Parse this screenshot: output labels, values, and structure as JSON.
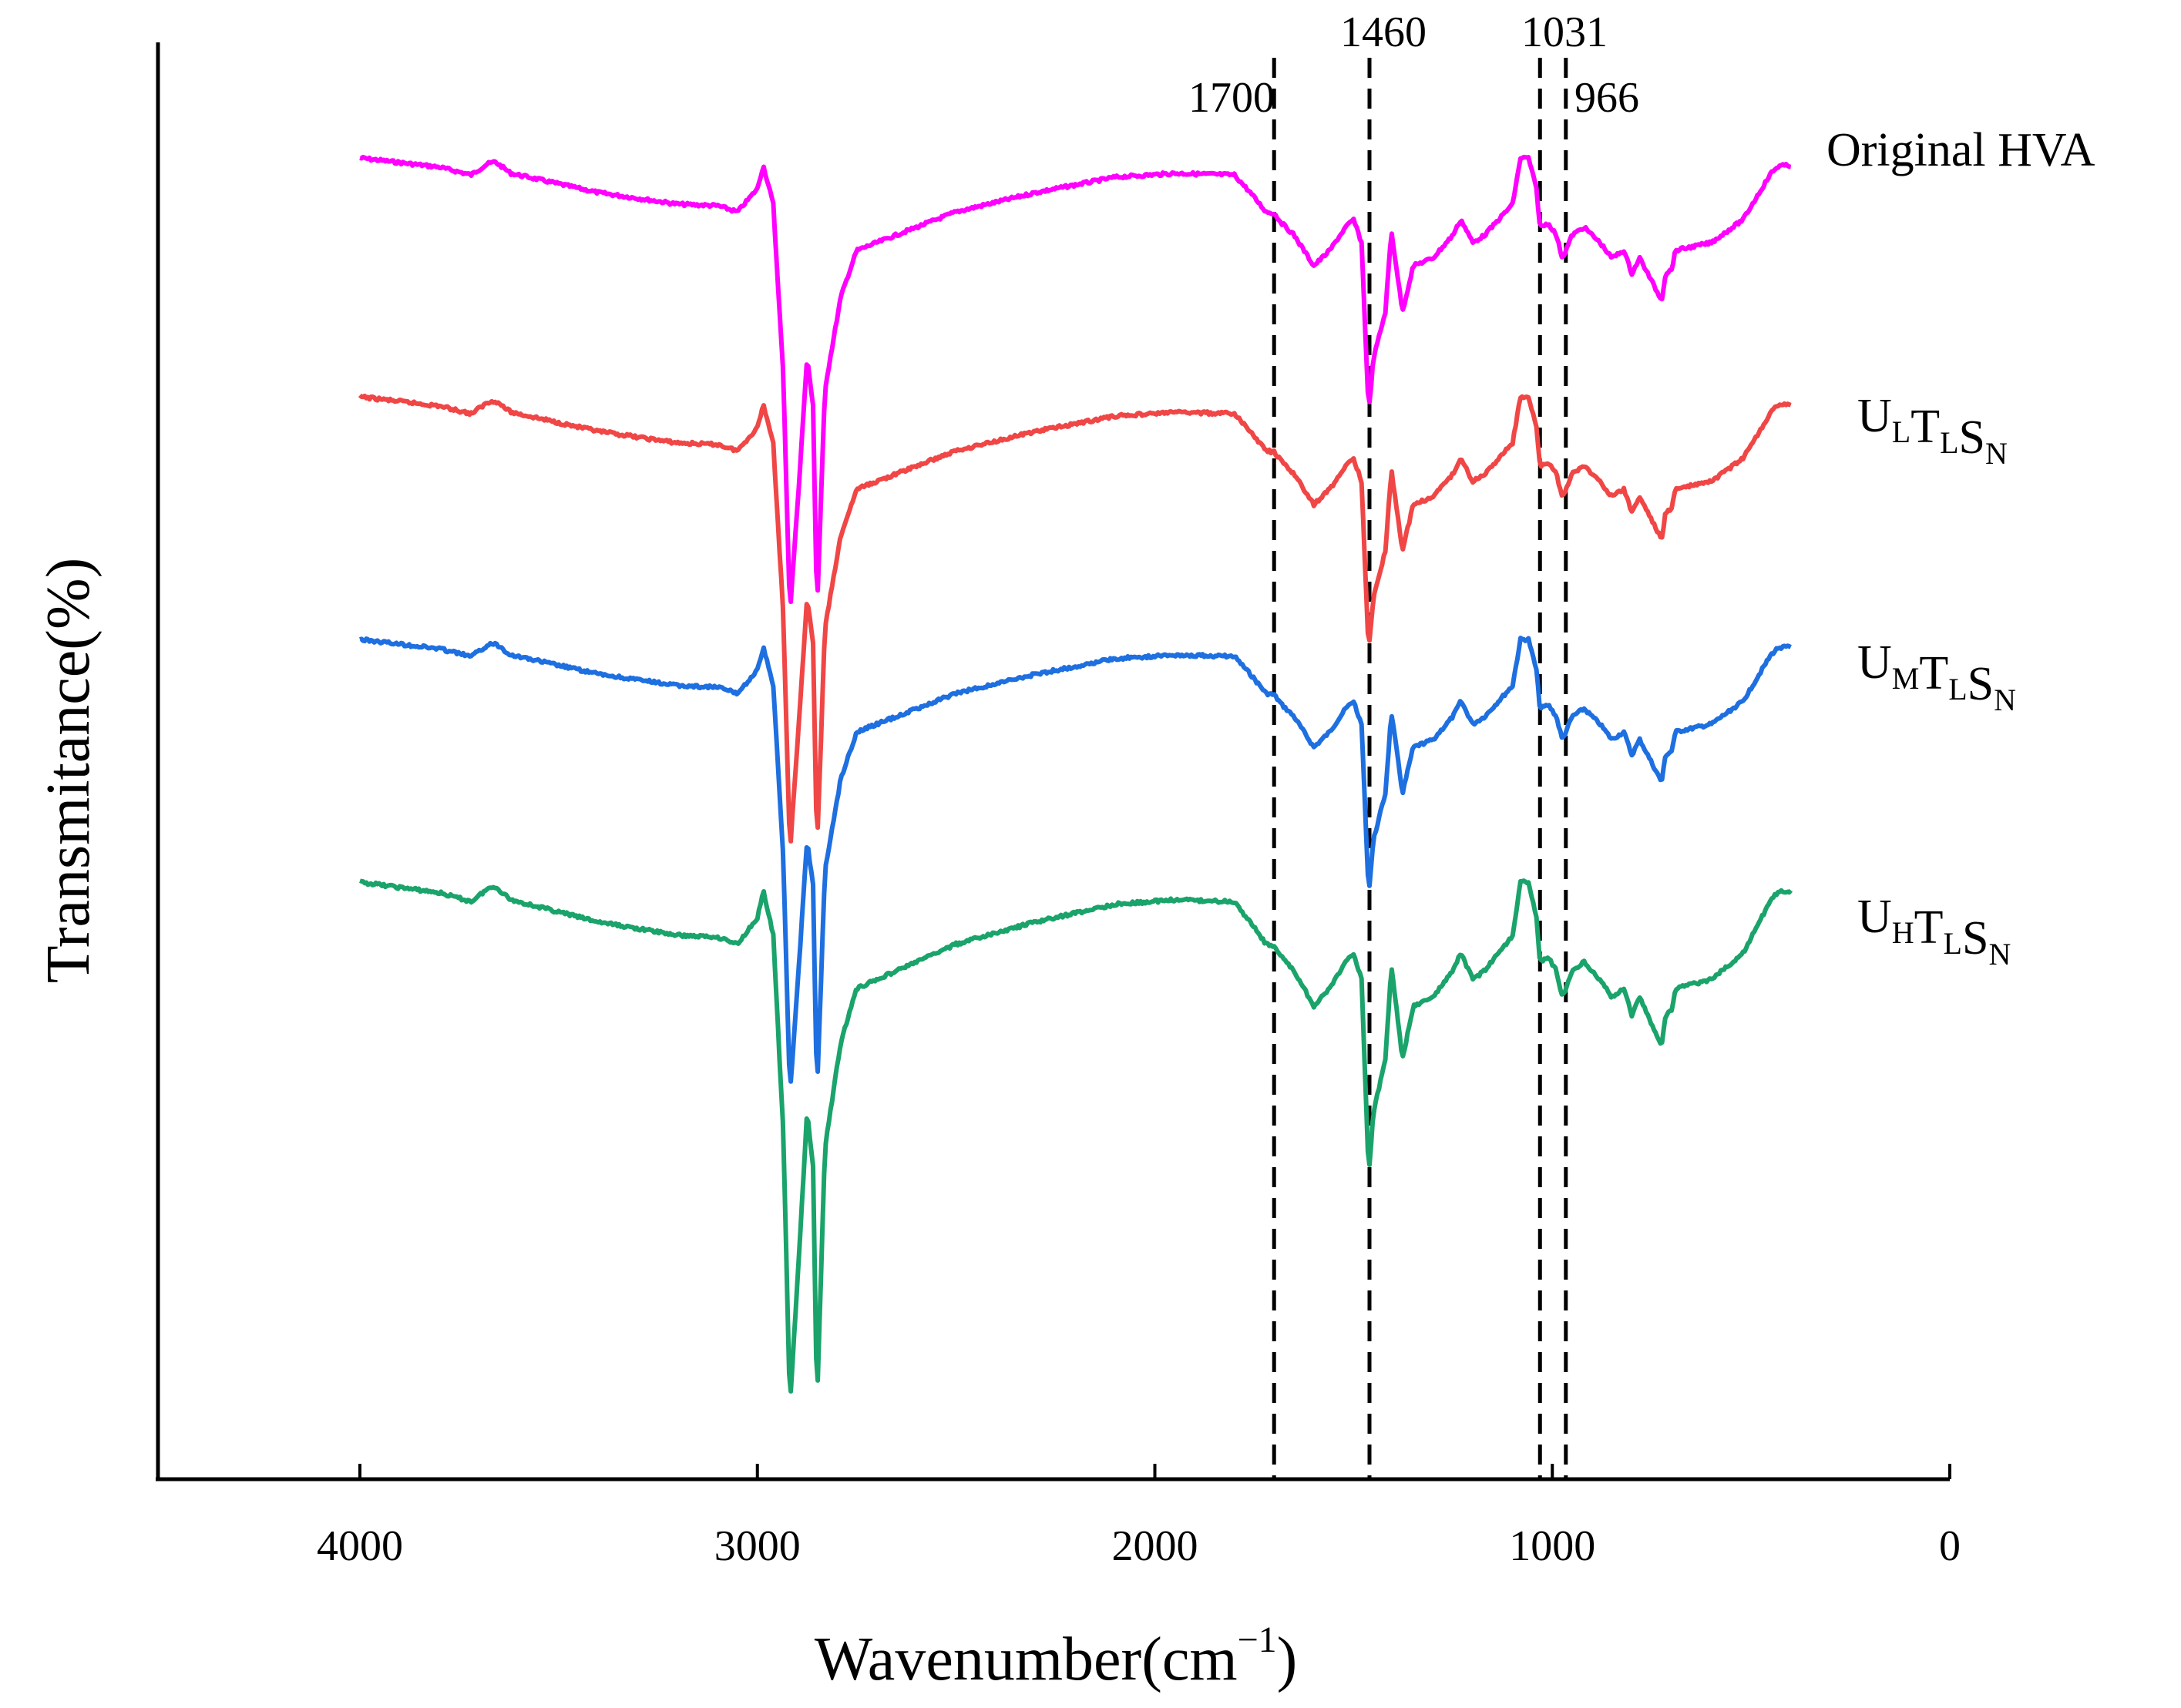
{
  "chart_data": {
    "type": "line",
    "title": "",
    "xlabel_main": "Wavenumber(cm",
    "xlabel_sup": "−1",
    "xlabel_close": ")",
    "ylabel": "Transmitance(%)",
    "xlim": [
      4500,
      0
    ],
    "x_ticks": [
      4000,
      3000,
      2000,
      1000,
      0
    ],
    "x_tick_labels": [
      "4000",
      "3000",
      "2000",
      "1000",
      "0"
    ],
    "yticks_shown": false,
    "legend": "inline-right",
    "reference_lines": [
      {
        "x": 1700,
        "label": "1700"
      },
      {
        "x": 1460,
        "label": "1460"
      },
      {
        "x": 1031,
        "label": "1031"
      },
      {
        "x": 966,
        "label": "966"
      }
    ],
    "series": [
      {
        "name": "Original HVA",
        "label_parts": [
          {
            "t": "Original HVA",
            "sub": ""
          }
        ],
        "color": "#ff00ff",
        "offset": 0,
        "scale": 1.0
      },
      {
        "name": "ULTLSN",
        "label_parts": [
          {
            "t": "U",
            "sub": "L"
          },
          {
            "t": "T",
            "sub": "L"
          },
          {
            "t": "S",
            "sub": "N"
          }
        ],
        "color": "#f04646",
        "offset": 310,
        "scale": 1.0
      },
      {
        "name": "UMTLSN",
        "label_parts": [
          {
            "t": "U",
            "sub": "M"
          },
          {
            "t": "T",
            "sub": "L"
          },
          {
            "t": "S",
            "sub": "N"
          }
        ],
        "color": "#1e6fe0",
        "offset": 625,
        "scale": 1.0
      },
      {
        "name": "UHTLSN",
        "label_parts": [
          {
            "t": "U",
            "sub": "H"
          },
          {
            "t": "T",
            "sub": "L"
          },
          {
            "t": "S",
            "sub": "N"
          }
        ],
        "color": "#1aa36a",
        "offset": 940,
        "scale": 1.15
      }
    ],
    "spectrum_shape": {
      "unit": "relative transmittance drop (0 = baseline)",
      "points": [
        [
          4000,
          0
        ],
        [
          3800,
          12
        ],
        [
          3720,
          22
        ],
        [
          3680,
          8
        ],
        [
          3660,
          5
        ],
        [
          3620,
          20
        ],
        [
          3400,
          45
        ],
        [
          3200,
          60
        ],
        [
          3100,
          62
        ],
        [
          3050,
          70
        ],
        [
          3000,
          40
        ],
        [
          2985,
          10
        ],
        [
          2960,
          60
        ],
        [
          2935,
          280
        ],
        [
          2918,
          590
        ],
        [
          2895,
          420
        ],
        [
          2875,
          260
        ],
        [
          2860,
          320
        ],
        [
          2850,
          590
        ],
        [
          2830,
          300
        ],
        [
          2790,
          180
        ],
        [
          2750,
          120
        ],
        [
          2700,
          110
        ],
        [
          2500,
          70
        ],
        [
          2300,
          45
        ],
        [
          2100,
          25
        ],
        [
          1950,
          20
        ],
        [
          1800,
          22
        ],
        [
          1760,
          45
        ],
        [
          1720,
          70
        ],
        [
          1700,
          72
        ],
        [
          1680,
          85
        ],
        [
          1650,
          100
        ],
        [
          1600,
          140
        ],
        [
          1560,
          120
        ],
        [
          1520,
          90
        ],
        [
          1500,
          80
        ],
        [
          1480,
          110
        ],
        [
          1462,
          330
        ],
        [
          1450,
          260
        ],
        [
          1420,
          200
        ],
        [
          1405,
          95
        ],
        [
          1390,
          150
        ],
        [
          1377,
          200
        ],
        [
          1350,
          140
        ],
        [
          1300,
          130
        ],
        [
          1250,
          100
        ],
        [
          1230,
          80
        ],
        [
          1200,
          110
        ],
        [
          1170,
          100
        ],
        [
          1100,
          60
        ],
        [
          1080,
          0
        ],
        [
          1060,
          0
        ],
        [
          1040,
          40
        ],
        [
          1031,
          90
        ],
        [
          1010,
          85
        ],
        [
          990,
          100
        ],
        [
          975,
          130
        ],
        [
          966,
          120
        ],
        [
          950,
          100
        ],
        [
          920,
          90
        ],
        [
          880,
          110
        ],
        [
          850,
          130
        ],
        [
          820,
          120
        ],
        [
          800,
          150
        ],
        [
          780,
          130
        ],
        [
          760,
          150
        ],
        [
          740,
          170
        ],
        [
          725,
          185
        ],
        [
          715,
          150
        ],
        [
          700,
          145
        ],
        [
          690,
          120
        ],
        [
          600,
          110
        ],
        [
          520,
          80
        ],
        [
          450,
          20
        ],
        [
          430,
          10
        ],
        [
          400,
          10
        ]
      ]
    }
  }
}
